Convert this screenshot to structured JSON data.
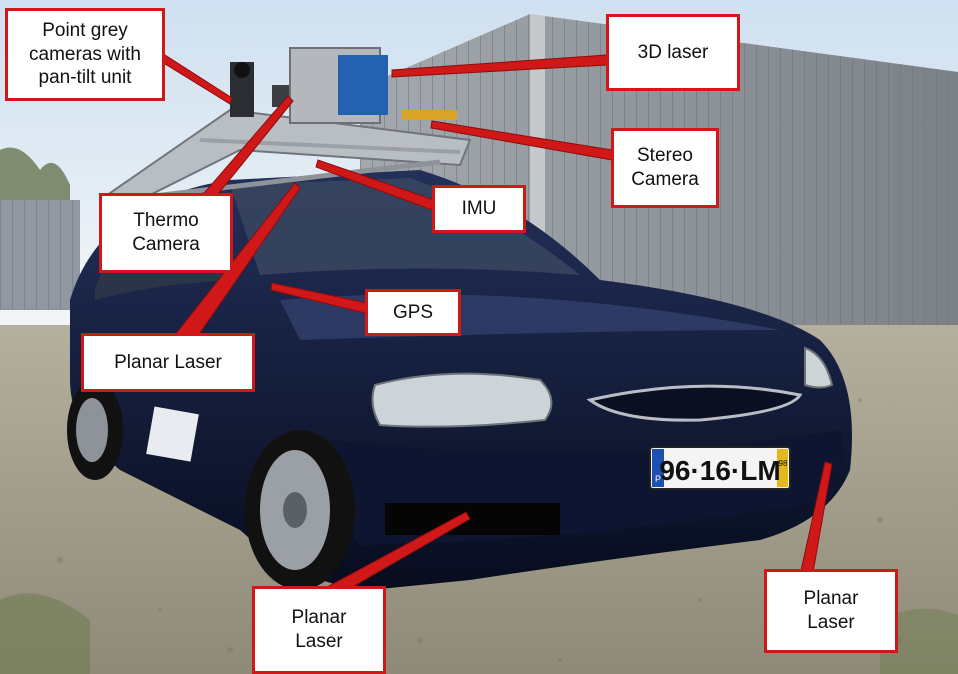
{
  "image": {
    "subject": "Sensor-equipped dark blue car",
    "license_plate": "96·16·LM",
    "plate_side": "P",
    "plate_year": "98"
  },
  "annotations": [
    {
      "id": "point-grey",
      "text": "Point grey\ncameras with\npan-tilt unit"
    },
    {
      "id": "laser-3d",
      "text": "3D laser"
    },
    {
      "id": "stereo-camera",
      "text": "Stereo\nCamera"
    },
    {
      "id": "thermo-camera",
      "text": "Thermo\nCamera"
    },
    {
      "id": "imu",
      "text": "IMU"
    },
    {
      "id": "gps",
      "text": "GPS"
    },
    {
      "id": "planar-laser-top",
      "text": "Planar Laser"
    },
    {
      "id": "planar-laser-bottom",
      "text": "Planar\nLaser"
    },
    {
      "id": "planar-laser-right",
      "text": "Planar\nLaser"
    }
  ],
  "colors": {
    "callout": "#d01818",
    "sky": "#dfeaf5",
    "car": "#101a3a",
    "building": "#8e949a",
    "ground": "#a59f8d"
  }
}
